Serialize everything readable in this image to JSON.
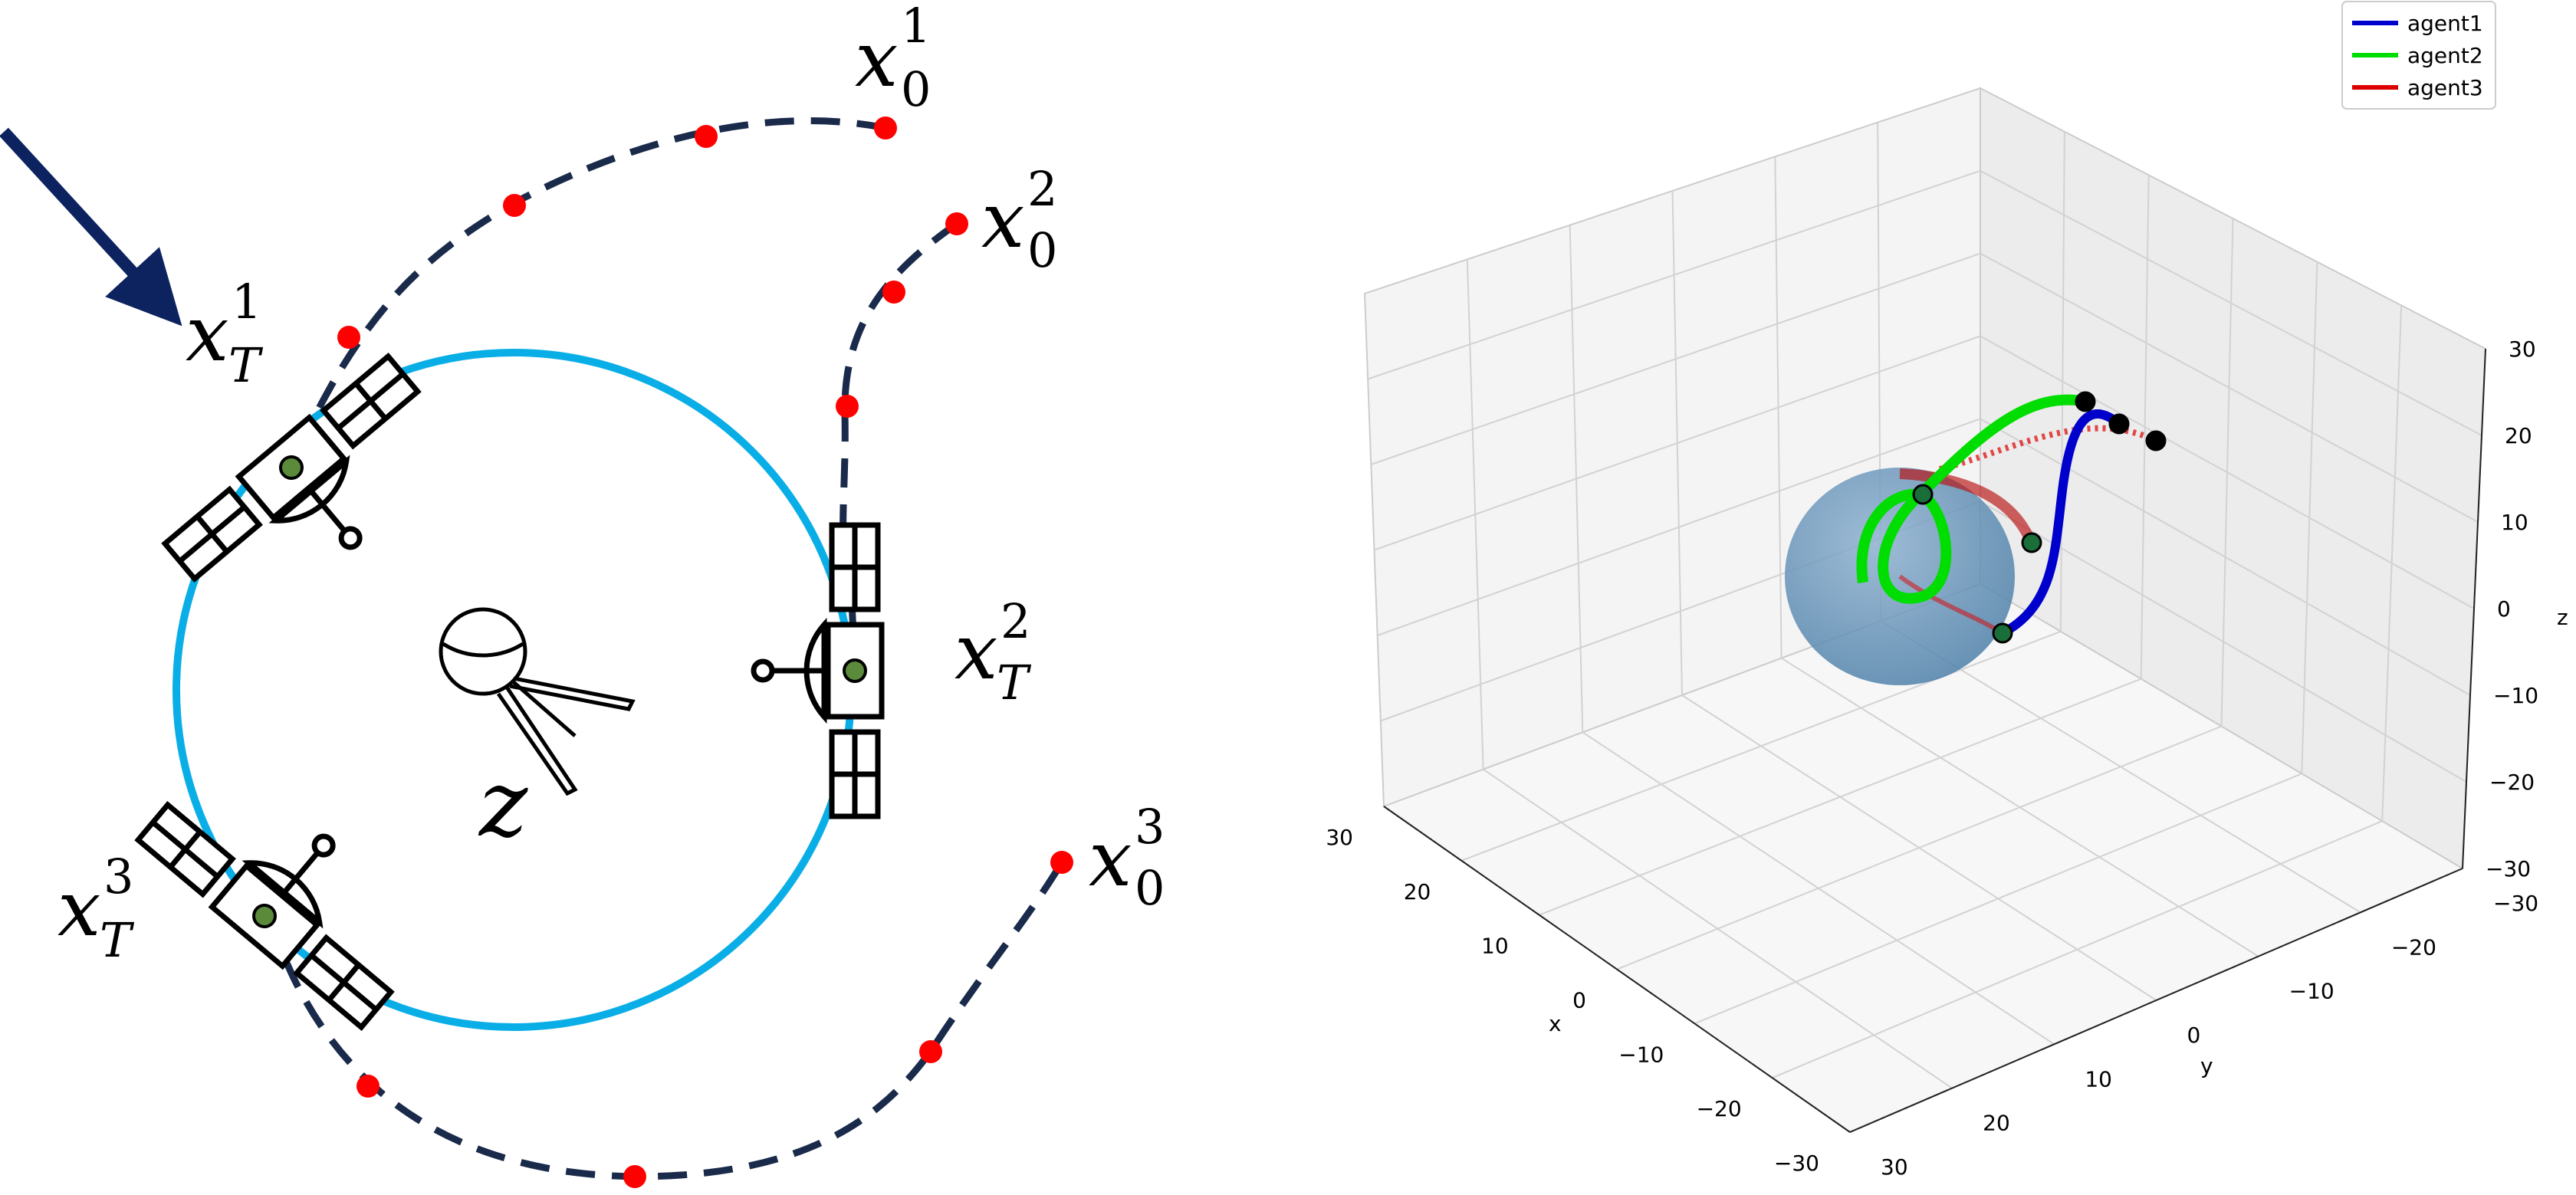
{
  "left_diagram": {
    "target_symbol": "z",
    "labels": [
      {
        "base": "x",
        "sup": "1",
        "sub": "0"
      },
      {
        "base": "x",
        "sup": "2",
        "sub": "0"
      },
      {
        "base": "x",
        "sup": "3",
        "sub": "0"
      },
      {
        "base": "x",
        "sup": "1",
        "sub": "T"
      },
      {
        "base": "x",
        "sup": "2",
        "sub": "T"
      },
      {
        "base": "x",
        "sup": "3",
        "sub": "T"
      }
    ],
    "colors": {
      "circle": "#0aaee6",
      "path": "#1a2a4a",
      "dots": "#ff0000",
      "arrow": "#0d2360",
      "end_marker": "#5a8a3a"
    },
    "icons": [
      "satellite-icon",
      "sputnik-icon",
      "arrow-icon"
    ]
  },
  "chart_data": {
    "type": "line3d",
    "legend": [
      "agent1",
      "agent2",
      "agent3"
    ],
    "legend_position": "top-right",
    "series_colors": [
      "#0000cc",
      "#00dd00",
      "#dd0000"
    ],
    "axes": {
      "x": {
        "label": "x",
        "ticks": [
          "30",
          "20",
          "10",
          "0",
          "−10",
          "−20",
          "−30"
        ],
        "lim": [
          -30,
          30
        ]
      },
      "y": {
        "label": "y",
        "ticks": [
          "−30",
          "−20",
          "−10",
          "0",
          "10",
          "20",
          "30"
        ],
        "lim": [
          -30,
          30
        ]
      },
      "z": {
        "label": "z",
        "ticks": [
          "−30",
          "−20",
          "−10",
          "0",
          "10",
          "20",
          "30"
        ],
        "lim": [
          -30,
          30
        ]
      }
    },
    "grid": true,
    "sphere_color": "#5e8fb8"
  }
}
